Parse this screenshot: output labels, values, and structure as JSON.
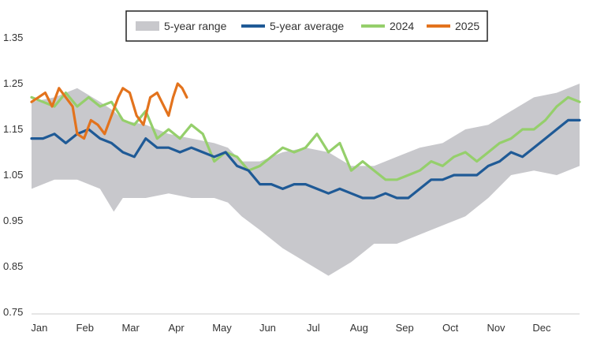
{
  "chart_data": {
    "type": "line",
    "title": "",
    "xlabel": "",
    "ylabel": "",
    "ylim": [
      0.75,
      1.35
    ],
    "yticks": [
      0.75,
      0.85,
      0.95,
      1.05,
      1.15,
      1.25,
      1.35
    ],
    "ytick_labels": [
      "0.75",
      "0.85",
      "0.95",
      "1.05",
      "1.15",
      "1.25",
      "1.35"
    ],
    "x_unit": "month (Jan = 0, Dec = 11)",
    "xlim": [
      0,
      12
    ],
    "months": [
      "Jan",
      "Feb",
      "Mar",
      "Apr",
      "May",
      "Jun",
      "Jul",
      "Aug",
      "Sep",
      "Oct",
      "Nov",
      "Dec"
    ],
    "legend": {
      "placement": "top-center",
      "entries": [
        {
          "label": "5-year range",
          "color": "#c8c8cc",
          "kind": "band"
        },
        {
          "label": "5-year average",
          "color": "#1f5a96",
          "kind": "line"
        },
        {
          "label": "2024",
          "color": "#95cf6b",
          "kind": "line"
        },
        {
          "label": "2025",
          "color": "#e3731d",
          "kind": "line"
        }
      ]
    },
    "series": [
      {
        "name": "5-year range",
        "type": "band",
        "color": "#c8c8cc",
        "x": [
          0,
          0.5,
          1,
          1.5,
          1.8,
          2,
          2.5,
          3,
          3.5,
          4,
          4.3,
          4.6,
          5,
          5.5,
          6,
          6.5,
          7,
          7.5,
          8,
          8.5,
          9,
          9.5,
          10,
          10.5,
          11,
          11.5,
          12
        ],
        "high": [
          1.21,
          1.22,
          1.24,
          1.21,
          1.19,
          1.17,
          1.16,
          1.14,
          1.13,
          1.12,
          1.11,
          1.08,
          1.08,
          1.1,
          1.11,
          1.1,
          1.07,
          1.07,
          1.09,
          1.11,
          1.12,
          1.15,
          1.16,
          1.19,
          1.22,
          1.23,
          1.25
        ],
        "low": [
          1.02,
          1.04,
          1.04,
          1.02,
          0.97,
          1.0,
          1.0,
          1.01,
          1.0,
          1.0,
          0.99,
          0.96,
          0.93,
          0.89,
          0.86,
          0.83,
          0.86,
          0.9,
          0.9,
          0.92,
          0.94,
          0.96,
          1.0,
          1.05,
          1.06,
          1.05,
          1.07
        ]
      },
      {
        "name": "5-year average",
        "color": "#1f5a96",
        "x": [
          0,
          0.25,
          0.5,
          0.75,
          1,
          1.25,
          1.5,
          1.75,
          2,
          2.25,
          2.5,
          2.75,
          3,
          3.25,
          3.5,
          3.75,
          4,
          4.25,
          4.5,
          4.75,
          5,
          5.25,
          5.5,
          5.75,
          6,
          6.25,
          6.5,
          6.75,
          7,
          7.25,
          7.5,
          7.75,
          8,
          8.25,
          8.5,
          8.75,
          9,
          9.25,
          9.5,
          9.75,
          10,
          10.25,
          10.5,
          10.75,
          11,
          11.25,
          11.5,
          11.75,
          12
        ],
        "values": [
          1.13,
          1.13,
          1.14,
          1.12,
          1.14,
          1.15,
          1.13,
          1.12,
          1.1,
          1.09,
          1.13,
          1.11,
          1.11,
          1.1,
          1.11,
          1.1,
          1.09,
          1.1,
          1.07,
          1.06,
          1.03,
          1.03,
          1.02,
          1.03,
          1.03,
          1.02,
          1.01,
          1.02,
          1.01,
          1.0,
          1.0,
          1.01,
          1.0,
          1.0,
          1.02,
          1.04,
          1.04,
          1.05,
          1.05,
          1.05,
          1.07,
          1.08,
          1.1,
          1.09,
          1.11,
          1.13,
          1.15,
          1.17,
          1.17
        ]
      },
      {
        "name": "2024",
        "color": "#95cf6b",
        "x": [
          0,
          0.25,
          0.5,
          0.75,
          1,
          1.25,
          1.5,
          1.75,
          2,
          2.25,
          2.5,
          2.75,
          3,
          3.25,
          3.5,
          3.75,
          4,
          4.25,
          4.5,
          4.75,
          5,
          5.25,
          5.5,
          5.75,
          6,
          6.25,
          6.5,
          6.75,
          7,
          7.25,
          7.5,
          7.75,
          8,
          8.25,
          8.5,
          8.75,
          9,
          9.25,
          9.5,
          9.75,
          10,
          10.25,
          10.5,
          10.75,
          11,
          11.25,
          11.5,
          11.75,
          12
        ],
        "values": [
          1.22,
          1.21,
          1.2,
          1.23,
          1.2,
          1.22,
          1.2,
          1.21,
          1.17,
          1.16,
          1.19,
          1.13,
          1.15,
          1.13,
          1.16,
          1.14,
          1.08,
          1.1,
          1.09,
          1.06,
          1.07,
          1.09,
          1.11,
          1.1,
          1.11,
          1.14,
          1.1,
          1.12,
          1.06,
          1.08,
          1.06,
          1.04,
          1.04,
          1.05,
          1.06,
          1.08,
          1.07,
          1.09,
          1.1,
          1.08,
          1.1,
          1.12,
          1.13,
          1.15,
          1.15,
          1.17,
          1.2,
          1.22,
          1.21
        ]
      },
      {
        "name": "2025",
        "color": "#e3731d",
        "x": [
          0,
          0.15,
          0.3,
          0.45,
          0.6,
          0.75,
          0.9,
          1,
          1.15,
          1.3,
          1.45,
          1.6,
          1.75,
          1.9,
          2,
          2.15,
          2.3,
          2.45,
          2.6,
          2.75,
          2.9,
          3,
          3.1,
          3.2,
          3.3,
          3.4
        ],
        "values": [
          1.21,
          1.22,
          1.23,
          1.2,
          1.24,
          1.22,
          1.2,
          1.14,
          1.13,
          1.17,
          1.16,
          1.14,
          1.18,
          1.22,
          1.24,
          1.23,
          1.18,
          1.16,
          1.22,
          1.23,
          1.2,
          1.18,
          1.22,
          1.25,
          1.24,
          1.22
        ]
      }
    ]
  }
}
